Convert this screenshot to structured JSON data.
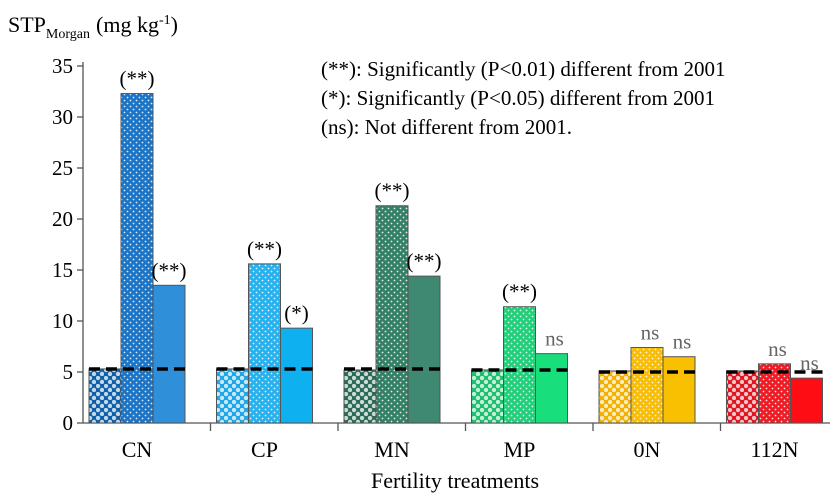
{
  "chart_data": {
    "type": "bar",
    "ylabel_main": "STP",
    "ylabel_sub": "Morgan",
    "ylabel_unit_pre": "(mg kg",
    "ylabel_unit_sup": "-1",
    "ylabel_unit_post": ")",
    "xlabel": "Fertility treatments",
    "ylim": [
      0,
      35
    ],
    "yticks": [
      "0",
      "5",
      "10",
      "15",
      "20",
      "25",
      "30",
      "35"
    ],
    "categories": [
      "CN",
      "CP",
      "MN",
      "MP",
      "0N",
      "112N"
    ],
    "groups": [
      {
        "category": "CN",
        "values": [
          5.3,
          32.3,
          13.5
        ],
        "labels": [
          "",
          "(**)",
          "(**)"
        ],
        "baseline": 5.3,
        "dark": "#0d5fa8",
        "mid": "#1c74c4",
        "light": "#2f8fd8"
      },
      {
        "category": "CP",
        "values": [
          5.3,
          15.6,
          9.3
        ],
        "labels": [
          "",
          "(**)",
          "(*)"
        ],
        "baseline": 5.3,
        "dark": "#1ea6e6",
        "mid": "#27b2ee",
        "light": "#0fb0f0"
      },
      {
        "category": "MN",
        "values": [
          5.2,
          21.3,
          14.4
        ],
        "labels": [
          "",
          "(**)",
          "(**)"
        ],
        "baseline": 5.3,
        "dark": "#2c6a58",
        "mid": "#348066",
        "light": "#3f8872"
      },
      {
        "category": "MP",
        "values": [
          5.2,
          11.4,
          6.8
        ],
        "labels": [
          "",
          "(**)",
          "ns"
        ],
        "baseline": 5.2,
        "dark": "#1dbf6e",
        "mid": "#23cf7a",
        "light": "#19de7c"
      },
      {
        "category": "0N",
        "values": [
          5.1,
          7.4,
          6.5
        ],
        "labels": [
          "",
          "ns",
          "ns"
        ],
        "baseline": 5.0,
        "dark": "#f2b000",
        "mid": "#f6bd0a",
        "light": "#f8c000"
      },
      {
        "category": "112N",
        "values": [
          5.1,
          5.8,
          4.4
        ],
        "labels": [
          "",
          "ns",
          "ns"
        ],
        "baseline": 5.0,
        "dark": "#e0141e",
        "mid": "#ee1c24",
        "light": "#ff0d14"
      }
    ],
    "annotations": [
      "(**): Significantly (P<0.01) different from 2001",
      "(*): Significantly (P<0.05) different from 2001",
      "(ns): Not different from 2001."
    ],
    "grid": false
  }
}
